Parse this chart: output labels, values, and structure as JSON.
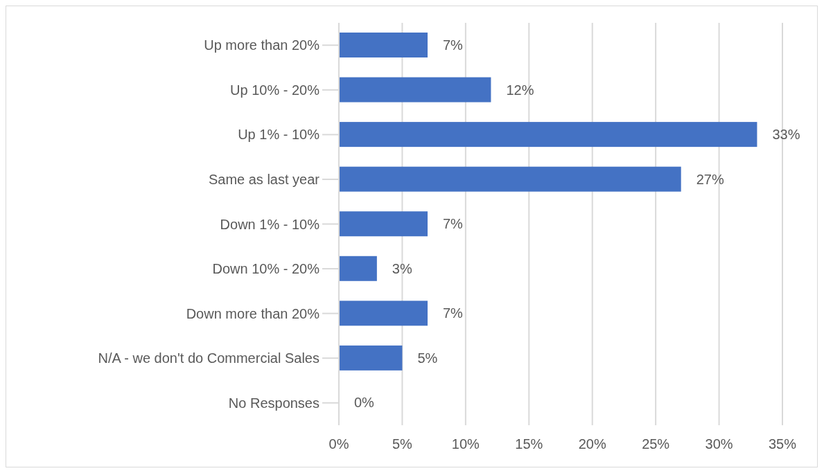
{
  "chart_data": {
    "type": "bar",
    "orientation": "horizontal",
    "categories": [
      "Up more than 20%",
      "Up 10% - 20%",
      "Up 1% - 10%",
      "Same as last year",
      "Down 1% - 10%",
      "Down 10% - 20%",
      "Down more than 20%",
      "N/A - we don't do Commercial Sales",
      "No Responses"
    ],
    "values": [
      7,
      12,
      33,
      27,
      7,
      3,
      7,
      5,
      0
    ],
    "value_labels": [
      "7%",
      "12%",
      "33%",
      "27%",
      "7%",
      "3%",
      "7%",
      "5%",
      "0%"
    ],
    "color": "#4472c4",
    "xlim": [
      0,
      35
    ],
    "xticks": [
      {
        "value": 0,
        "label": "0%"
      },
      {
        "value": 5,
        "label": "5%"
      },
      {
        "value": 10,
        "label": "10%"
      },
      {
        "value": 15,
        "label": "15%"
      },
      {
        "value": 20,
        "label": "20%"
      },
      {
        "value": 25,
        "label": "25%"
      },
      {
        "value": 30,
        "label": "30%"
      },
      {
        "value": 35,
        "label": "35%"
      }
    ],
    "grid": "x"
  }
}
